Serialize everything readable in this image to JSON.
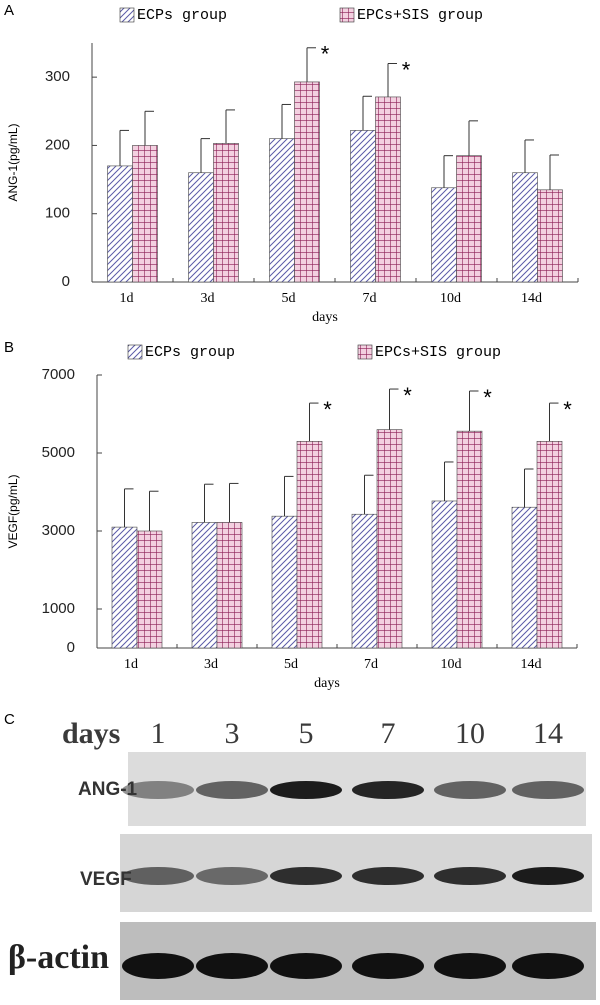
{
  "chart_data": [
    {
      "type": "bar",
      "panel": "A",
      "y_label": "ANG-1(pg/mL)",
      "x_label": "days",
      "categories": [
        "1d",
        "3d",
        "5d",
        "7d",
        "10d",
        "14d"
      ],
      "series": [
        {
          "name": "ECPs group",
          "color": "#5b5ba8",
          "pattern": "diagonal",
          "values": [
            170,
            160,
            210,
            222,
            138,
            160
          ],
          "errors": [
            52,
            50,
            50,
            50,
            47,
            48
          ]
        },
        {
          "name": "EPCs+SIS group",
          "color": "#8b1e55",
          "pattern": "grid",
          "values": [
            200,
            203,
            293,
            271,
            185,
            135
          ],
          "errors": [
            50,
            49,
            50,
            49,
            51,
            51
          ],
          "significance": [
            null,
            null,
            "*",
            "*",
            null,
            null
          ]
        }
      ],
      "ylim": [
        0,
        350
      ],
      "yticks": [
        0,
        100,
        200,
        300
      ]
    },
    {
      "type": "bar",
      "panel": "B",
      "y_label": "VEGF(pg/mL)",
      "x_label": "days",
      "categories": [
        "1d",
        "3d",
        "5d",
        "7d",
        "10d",
        "14d"
      ],
      "series": [
        {
          "name": "ECPs group",
          "color": "#5b5ba8",
          "pattern": "diagonal",
          "values": [
            3100,
            3220,
            3380,
            3430,
            3770,
            3610
          ],
          "errors": [
            980,
            980,
            1020,
            1000,
            1000,
            980
          ]
        },
        {
          "name": "EPCs+SIS group",
          "color": "#8b1e55",
          "pattern": "grid",
          "values": [
            3000,
            3220,
            5300,
            5600,
            5560,
            5300
          ],
          "errors": [
            1020,
            1000,
            980,
            1040,
            1030,
            980
          ],
          "significance": [
            null,
            null,
            "*",
            "*",
            "*",
            "*"
          ]
        }
      ],
      "ylim": [
        0,
        7000
      ],
      "yticks": [
        0,
        1000,
        3000,
        5000,
        7000
      ]
    }
  ],
  "blot": {
    "panel": "C",
    "header": "days",
    "lanes": [
      "1",
      "3",
      "5",
      "7",
      "10",
      "14"
    ],
    "rows": [
      "ANG-1",
      "VEGF",
      "β-actin"
    ]
  }
}
